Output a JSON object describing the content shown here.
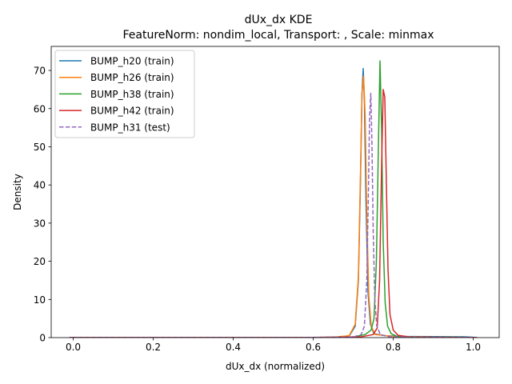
{
  "chart_data": {
    "type": "line",
    "title": "dUx_dx KDE",
    "subtitle": "FeatureNorm: nondim_local, Transport: , Scale: minmax",
    "xlabel": "dUx_dx (normalized)",
    "ylabel": "Density",
    "xlim": [
      -0.055,
      1.065
    ],
    "ylim": [
      0,
      76.3
    ],
    "xticks": [
      0.0,
      0.2,
      0.4,
      0.6,
      0.8,
      1.0
    ],
    "xtick_labels": [
      "0.0",
      "0.2",
      "0.4",
      "0.6",
      "0.8",
      "1.0"
    ],
    "yticks": [
      0,
      10,
      20,
      30,
      40,
      50,
      60,
      70
    ],
    "ytick_labels": [
      "0",
      "10",
      "20",
      "30",
      "40",
      "50",
      "60",
      "70"
    ],
    "grid": false,
    "legend_position": "top-left",
    "series": [
      {
        "name": "BUMP_h20 (train)",
        "color": "#1f77b4",
        "dash": "solid",
        "points": [
          [
            -0.01,
            0.02
          ],
          [
            0.5,
            0.03
          ],
          [
            0.65,
            0.06
          ],
          [
            0.69,
            0.4
          ],
          [
            0.705,
            3.0
          ],
          [
            0.713,
            15
          ],
          [
            0.718,
            40
          ],
          [
            0.722,
            64
          ],
          [
            0.725,
            70.5
          ],
          [
            0.728,
            62
          ],
          [
            0.732,
            35
          ],
          [
            0.737,
            12
          ],
          [
            0.743,
            3.5
          ],
          [
            0.752,
            1.0
          ],
          [
            0.78,
            0.5
          ],
          [
            0.82,
            0.3
          ],
          [
            0.9,
            0.25
          ],
          [
            0.98,
            0.2
          ],
          [
            1.01,
            0.02
          ]
        ]
      },
      {
        "name": "BUMP_h26 (train)",
        "color": "#ff7f0e",
        "dash": "solid",
        "points": [
          [
            -0.01,
            0.02
          ],
          [
            0.5,
            0.03
          ],
          [
            0.65,
            0.07
          ],
          [
            0.69,
            0.5
          ],
          [
            0.705,
            3.5
          ],
          [
            0.713,
            16
          ],
          [
            0.718,
            42
          ],
          [
            0.722,
            64
          ],
          [
            0.726,
            68.5
          ],
          [
            0.73,
            58
          ],
          [
            0.734,
            32
          ],
          [
            0.739,
            11
          ],
          [
            0.745,
            3.0
          ],
          [
            0.755,
            0.8
          ],
          [
            0.8,
            0.3
          ],
          [
            0.9,
            0.15
          ],
          [
            1.01,
            0.02
          ]
        ]
      },
      {
        "name": "BUMP_h38 (train)",
        "color": "#2ca02c",
        "dash": "solid",
        "points": [
          [
            -0.01,
            0.02
          ],
          [
            0.6,
            0.04
          ],
          [
            0.7,
            0.15
          ],
          [
            0.73,
            0.8
          ],
          [
            0.745,
            2.0
          ],
          [
            0.752,
            5.0
          ],
          [
            0.758,
            20
          ],
          [
            0.763,
            50
          ],
          [
            0.767,
            72.5
          ],
          [
            0.771,
            55
          ],
          [
            0.775,
            25
          ],
          [
            0.78,
            9
          ],
          [
            0.786,
            3.0
          ],
          [
            0.795,
            1.0
          ],
          [
            0.81,
            0.3
          ],
          [
            0.9,
            0.15
          ],
          [
            1.01,
            0.02
          ]
        ]
      },
      {
        "name": "BUMP_h42 (train)",
        "color": "#d62728",
        "dash": "solid",
        "points": [
          [
            -0.01,
            0.02
          ],
          [
            0.6,
            0.04
          ],
          [
            0.72,
            0.2
          ],
          [
            0.75,
            0.8
          ],
          [
            0.76,
            2.5
          ],
          [
            0.766,
            15
          ],
          [
            0.771,
            45
          ],
          [
            0.775,
            65
          ],
          [
            0.779,
            63
          ],
          [
            0.783,
            40
          ],
          [
            0.787,
            18
          ],
          [
            0.792,
            6
          ],
          [
            0.8,
            2.0
          ],
          [
            0.812,
            0.6
          ],
          [
            0.84,
            0.2
          ],
          [
            0.9,
            0.1
          ],
          [
            1.01,
            0.02
          ]
        ]
      },
      {
        "name": "BUMP_h31 (test)",
        "color": "#9467bd",
        "dash": "dashed",
        "points": [
          [
            -0.01,
            0.02
          ],
          [
            0.6,
            0.04
          ],
          [
            0.7,
            0.15
          ],
          [
            0.72,
            0.8
          ],
          [
            0.728,
            3.0
          ],
          [
            0.734,
            15
          ],
          [
            0.738,
            38
          ],
          [
            0.741,
            58
          ],
          [
            0.744,
            64
          ],
          [
            0.747,
            50
          ],
          [
            0.75,
            28
          ],
          [
            0.754,
            10
          ],
          [
            0.759,
            3.0
          ],
          [
            0.768,
            0.8
          ],
          [
            0.79,
            0.2
          ],
          [
            0.9,
            0.08
          ],
          [
            1.01,
            0.02
          ]
        ]
      }
    ]
  }
}
